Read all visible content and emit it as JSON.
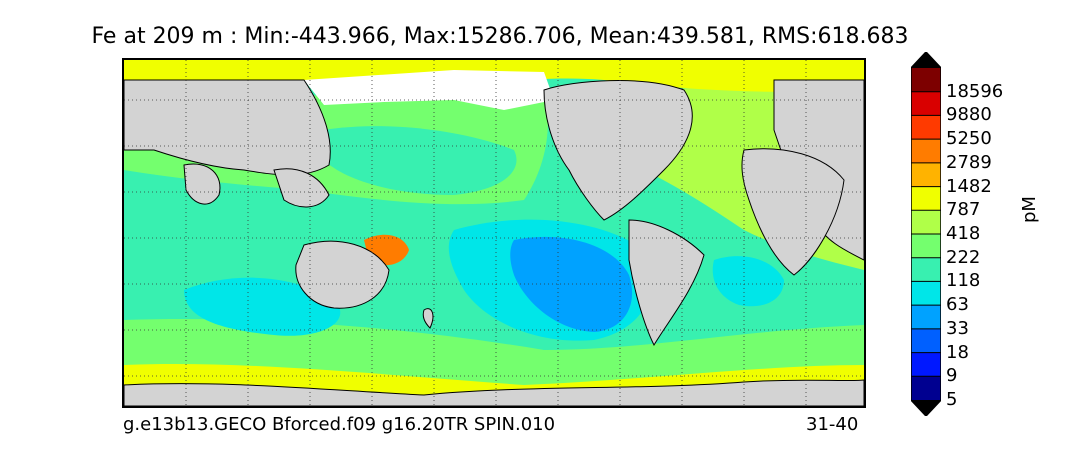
{
  "title": "Fe at 209 m : Min:-443.966, Max:15286.706, Mean:439.581, RMS:618.683",
  "footer": {
    "run_name": "g.e13b13.GECO Bforced.f09 g16.20TR SPIN.010",
    "years": "31-40"
  },
  "colorbar": {
    "unit": "pM",
    "labels": [
      "18596",
      "9880",
      "5250",
      "2789",
      "1482",
      "787",
      "418",
      "222",
      "118",
      "63",
      "33",
      "18",
      "9",
      "5"
    ],
    "colors": [
      "#7d0000",
      "#d90000",
      "#ff3a00",
      "#ff7c00",
      "#ffb300",
      "#f0ff00",
      "#b0ff48",
      "#74ff6e",
      "#38f0b0",
      "#00e6e8",
      "#00a2ff",
      "#0060ff",
      "#0018ff",
      "#000090"
    ],
    "extend_top_color": "#000000",
    "extend_bottom_color": "#000000"
  },
  "colors": {
    "land": "#d3d3d3",
    "ice": "#ffffff",
    "grid": "#333333"
  }
}
